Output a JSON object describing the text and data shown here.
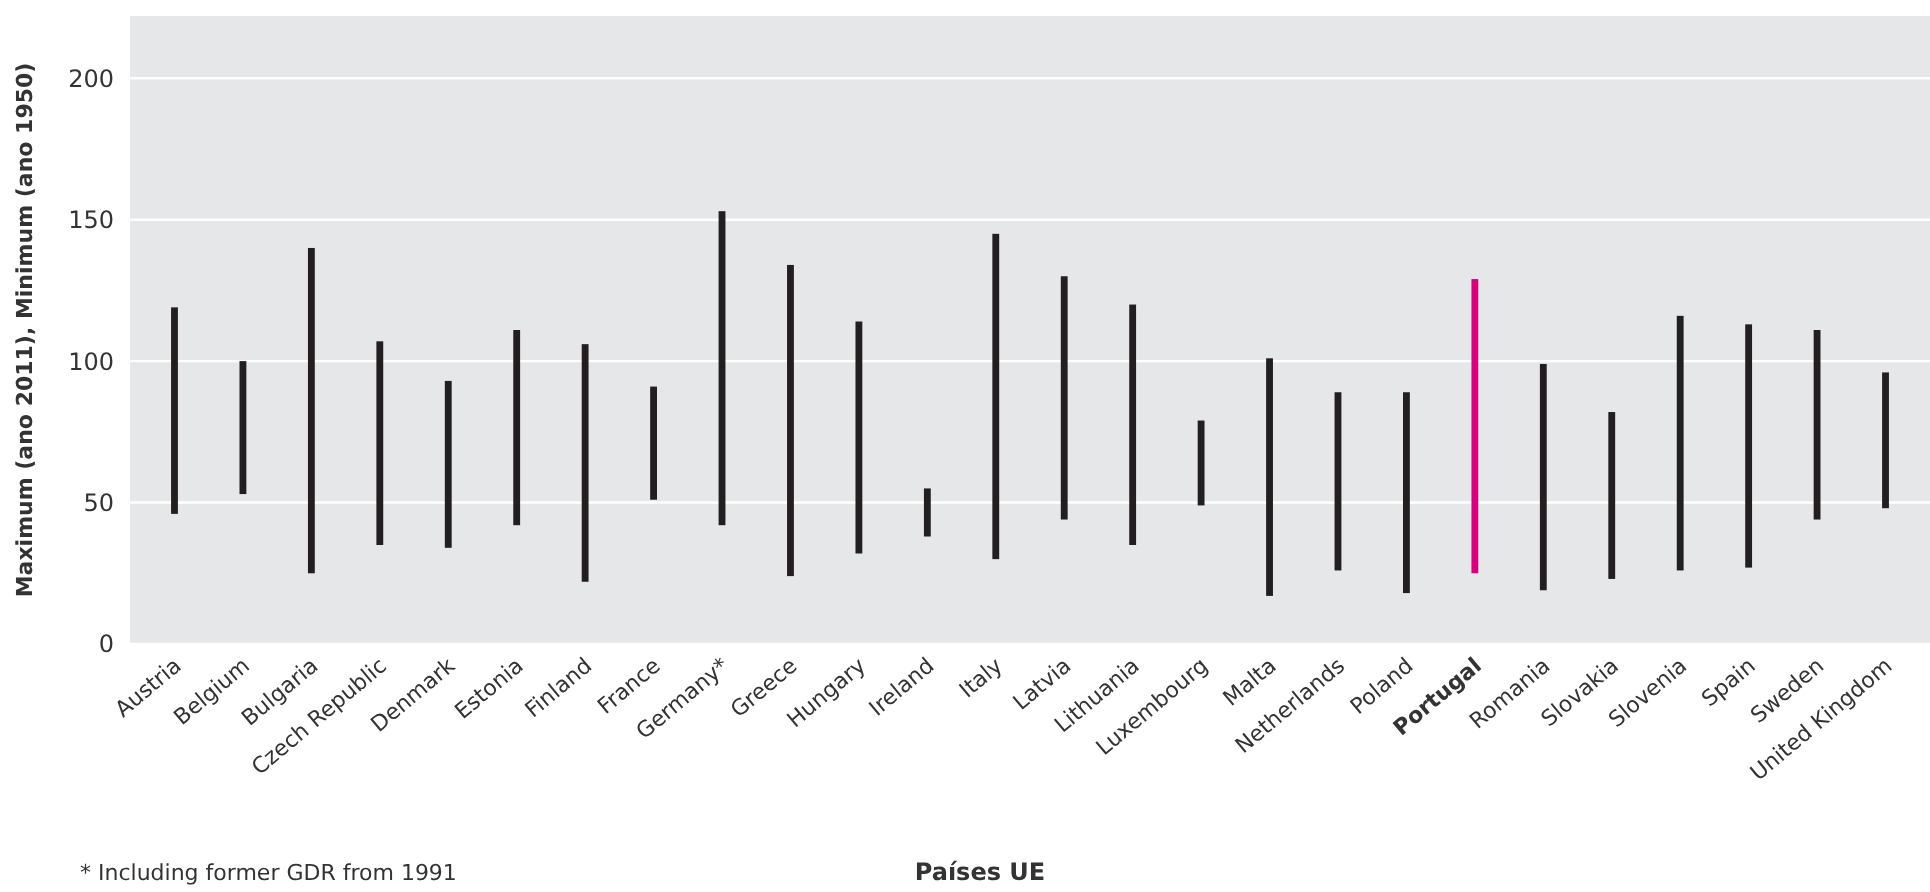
{
  "chart_data": {
    "type": "bar",
    "xlabel": "Países UE",
    "ylabel": "Maximum (ano 2011), Minimum (ano 1950)",
    "categories": [
      "Austria",
      "Belgium",
      "Bulgaria",
      "Czech Republic",
      "Denmark",
      "Estonia",
      "Finland",
      "France",
      "Germany*",
      "Greece",
      "Hungary",
      "Ireland",
      "Italy",
      "Latvia",
      "Lithuania",
      "Luxembourg",
      "Malta",
      "Netherlands",
      "Poland",
      "Portugal",
      "Romania",
      "Slovakia",
      "Slovenia",
      "Spain",
      "Sweden",
      "United Kingdom"
    ],
    "base": [
      46,
      53,
      25,
      35,
      34,
      42,
      22,
      51,
      42,
      24,
      32,
      38,
      30,
      44,
      35,
      49,
      17,
      26,
      18,
      25,
      19,
      23,
      26,
      27,
      44,
      48
    ],
    "values": [
      73,
      47,
      115,
      72,
      59,
      69,
      84,
      40,
      111,
      110,
      82,
      17,
      115,
      86,
      85,
      30,
      84,
      63,
      71,
      104,
      80,
      59,
      90,
      86,
      67,
      48
    ],
    "colors": [
      "#231f20",
      "#231f20",
      "#231f20",
      "#231f20",
      "#231f20",
      "#231f20",
      "#231f20",
      "#231f20",
      "#231f20",
      "#231f20",
      "#231f20",
      "#231f20",
      "#231f20",
      "#231f20",
      "#231f20",
      "#231f20",
      "#231f20",
      "#231f20",
      "#231f20",
      "#d6007f",
      "#231f20",
      "#231f20",
      "#231f20",
      "#231f20",
      "#231f20",
      "#231f20"
    ],
    "ylim": [
      0,
      222
    ],
    "yticks": [
      0,
      50,
      100,
      150,
      200
    ],
    "grid": "y",
    "annotations": [
      "* Including former GDR from 1991"
    ]
  }
}
